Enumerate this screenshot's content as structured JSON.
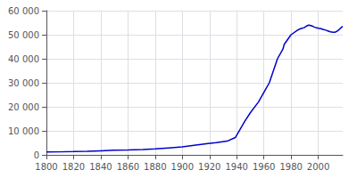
{
  "chart_data": {
    "type": "line",
    "x": [
      1800,
      1810,
      1820,
      1830,
      1840,
      1850,
      1860,
      1871,
      1880,
      1890,
      1900,
      1910,
      1919,
      1925,
      1933,
      1939,
      1946,
      1950,
      1956,
      1961,
      1964,
      1970,
      1974,
      1975,
      1980,
      1985,
      1987,
      1990,
      1991,
      1992,
      1993,
      1994,
      1995,
      1996,
      1997,
      1998,
      1999,
      2000,
      2001,
      2002,
      2003,
      2004,
      2005,
      2006,
      2007,
      2008,
      2009,
      2010,
      2011,
      2012,
      2013,
      2014,
      2015,
      2016,
      2017,
      2018
    ],
    "values": [
      1200,
      1250,
      1350,
      1500,
      1700,
      1900,
      2000,
      2200,
      2500,
      2900,
      3300,
      4100,
      4700,
      5100,
      5700,
      7200,
      14000,
      17500,
      22000,
      27000,
      30000,
      40000,
      44000,
      46000,
      50000,
      52000,
      52500,
      53000,
      53500,
      53800,
      54000,
      53900,
      53700,
      53500,
      53200,
      53000,
      52900,
      52700,
      52600,
      52500,
      52300,
      52100,
      52000,
      51800,
      51600,
      51400,
      51200,
      51100,
      51000,
      51000,
      51200,
      51500,
      52000,
      52500,
      53000,
      53500
    ],
    "color": "#0000CC",
    "xlim": [
      1800,
      2018
    ],
    "xticks": [
      1800,
      1820,
      1840,
      1860,
      1880,
      1900,
      1920,
      1940,
      1960,
      1980,
      2000
    ],
    "ylim": [
      0,
      60000
    ],
    "yticks": [
      0,
      {
        "value": 10000,
        "label": "10 000"
      },
      {
        "value": 20000,
        "label": "20 000"
      },
      {
        "value": 30000,
        "label": "30 000"
      },
      {
        "value": 40000,
        "label": "40 000"
      },
      {
        "value": 50000,
        "label": "50 000"
      },
      {
        "value": 60000,
        "label": "60 000"
      }
    ],
    "grid": true
  }
}
